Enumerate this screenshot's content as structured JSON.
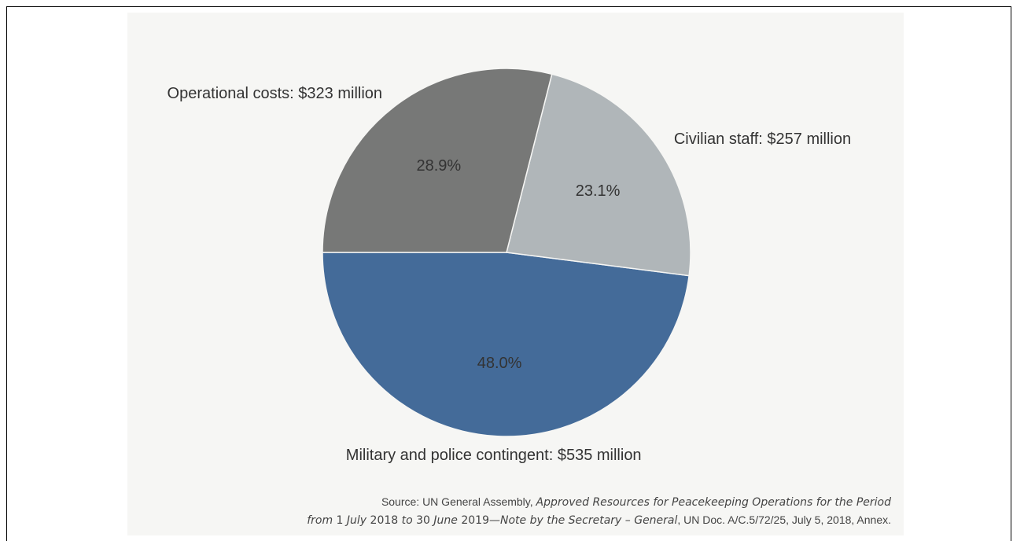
{
  "chart_data": {
    "type": "pie",
    "title": "",
    "slices": [
      {
        "label": "Military and police contingent: $535 million",
        "value": 535,
        "percent_label": "48.0%",
        "color": "#446b99"
      },
      {
        "label": "Civilian staff: $257 million",
        "value": 257,
        "percent_label": "23.1%",
        "color": "#b0b6b9"
      },
      {
        "label": "Operational costs: $323 million",
        "value": 323,
        "percent_label": "28.9%",
        "color": "#777877"
      }
    ],
    "start_angle_deg": 180,
    "direction": "counterclockwise"
  },
  "source": {
    "prefix": "Source: UN General Assembly, ",
    "title_italic_1": "Approved Resources for Peacekeeping Operations for the Period",
    "line2_italic_a": "from",
    "line2_plain_a": " 1 ",
    "line2_italic_b": "July",
    "line2_plain_b": " 2018 ",
    "line2_italic_c": "to",
    "line2_plain_c": " 30 ",
    "line2_italic_d": "June",
    "line2_plain_d": " 2019",
    "line2_italic_e": "—Note by the Secretary – General",
    "line2_suffix": ", UN Doc. A/C.5/72/25, July 5, 2018, Annex."
  },
  "colors": {
    "background": "#f6f6f4",
    "text": "#333333"
  }
}
